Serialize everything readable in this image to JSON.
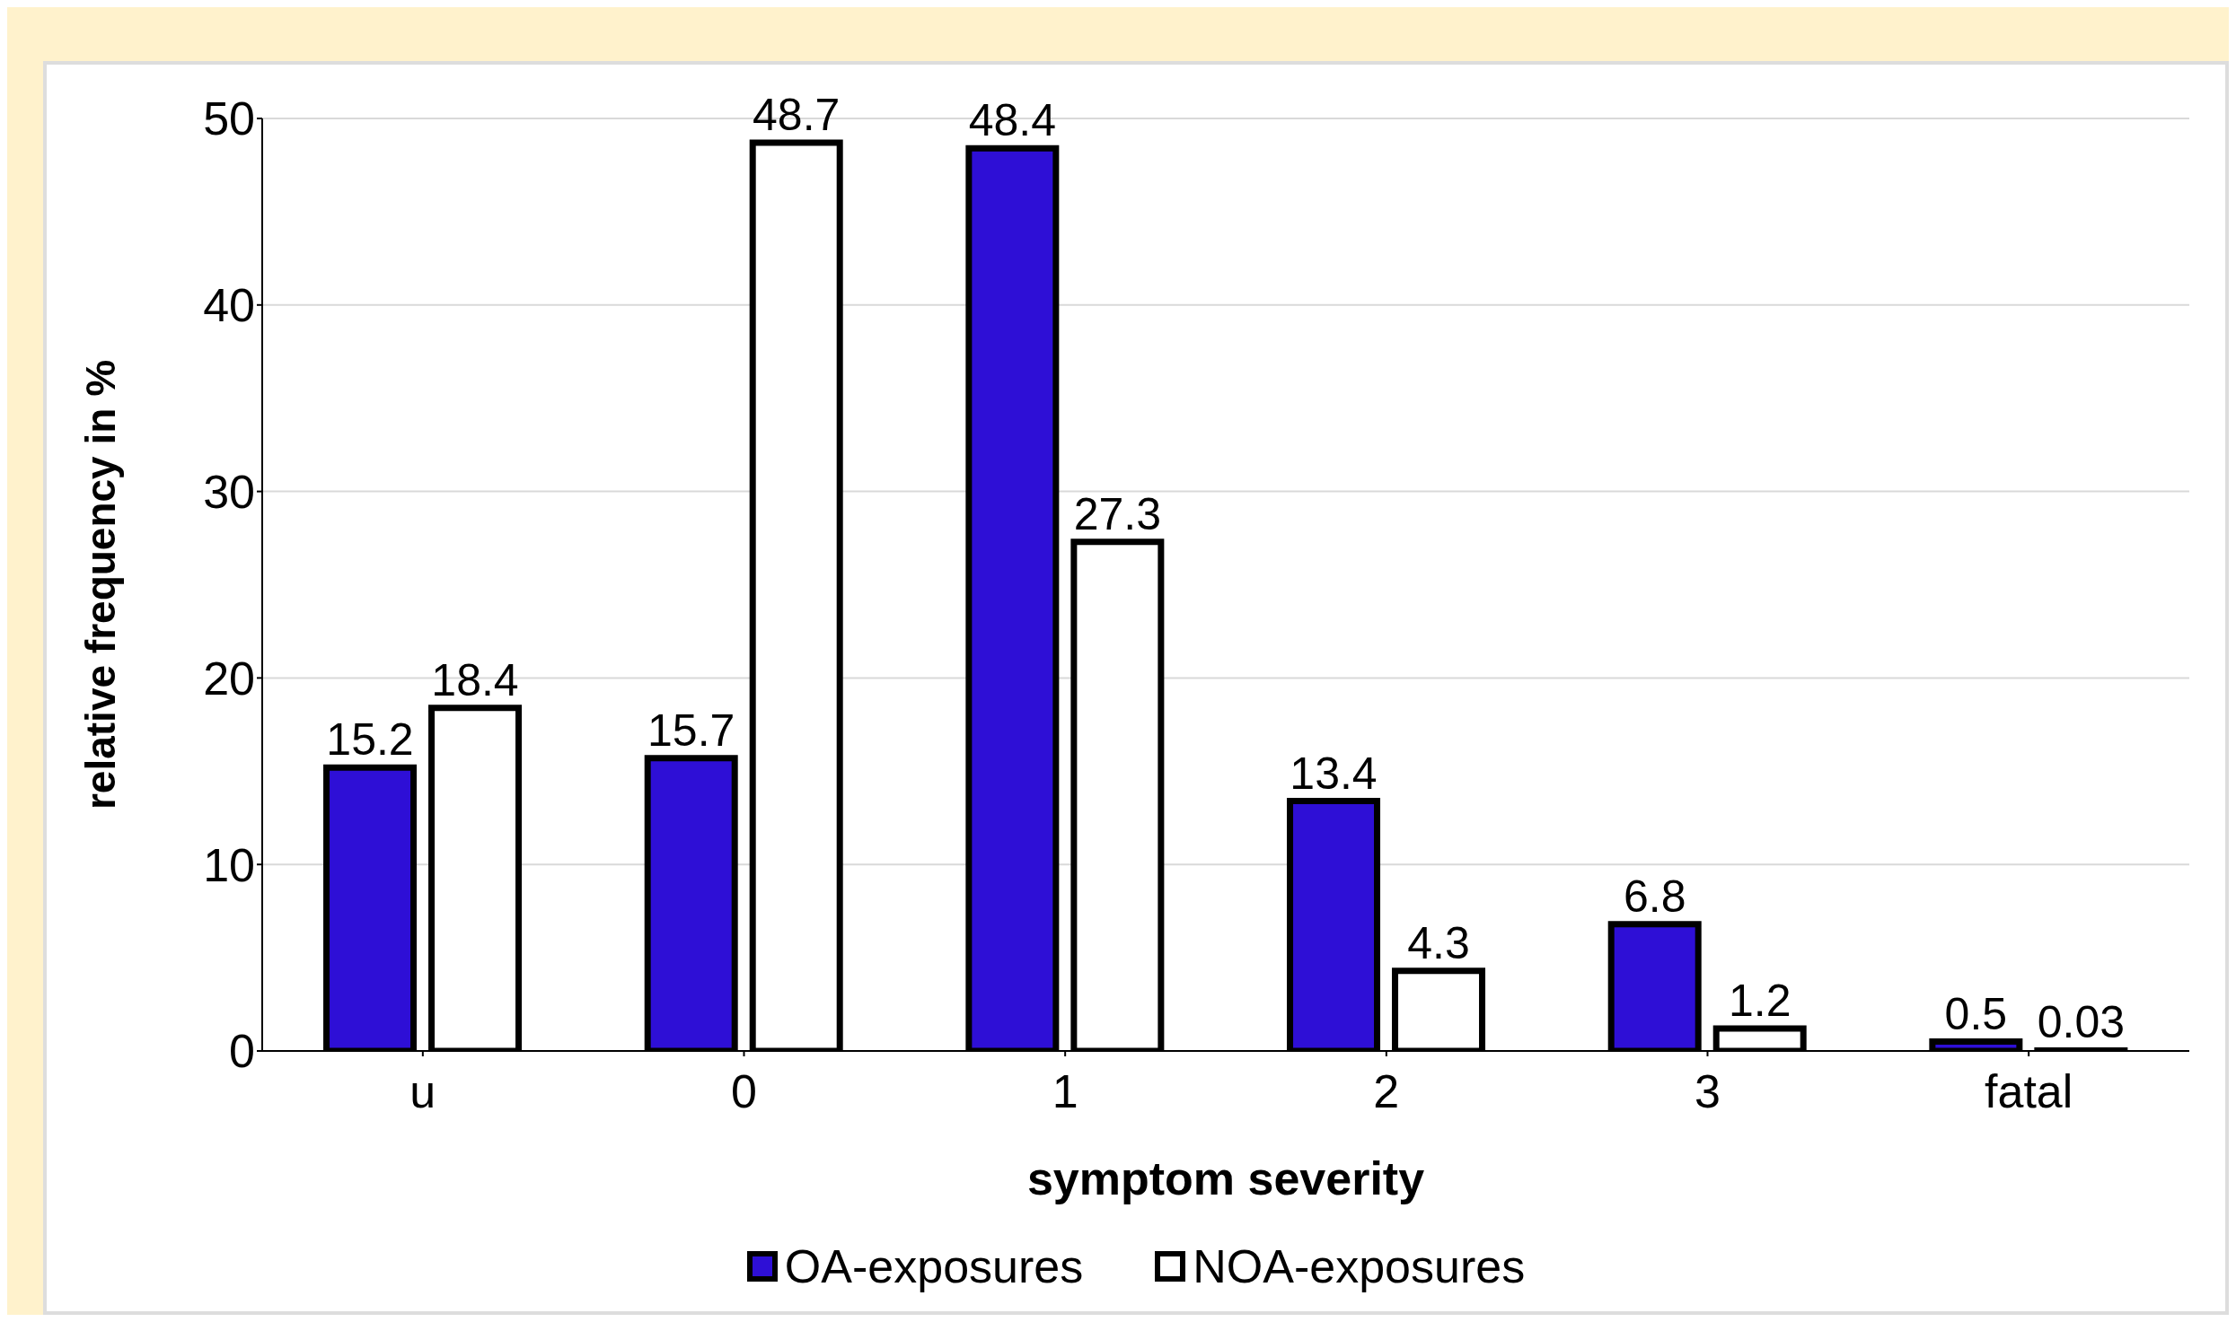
{
  "chart_data": {
    "type": "bar",
    "xlabel": "symptom severity",
    "ylabel": "relative frequency in %",
    "categories": [
      "u",
      "0",
      "1",
      "2",
      "3",
      "fatal"
    ],
    "series": [
      {
        "name": "OA-exposures",
        "color": "#2e0fd6",
        "values": [
          15.2,
          15.7,
          48.4,
          13.4,
          6.8,
          0.5
        ]
      },
      {
        "name": "NOA-exposures",
        "color": "#ffffff",
        "values": [
          18.4,
          48.7,
          27.3,
          4.3,
          1.2,
          0.03
        ]
      }
    ],
    "ylim": [
      0,
      50
    ],
    "yticks": [
      0,
      10,
      20,
      30,
      40,
      50
    ],
    "grid": "y",
    "legend": "bottom",
    "data_labels": true
  }
}
